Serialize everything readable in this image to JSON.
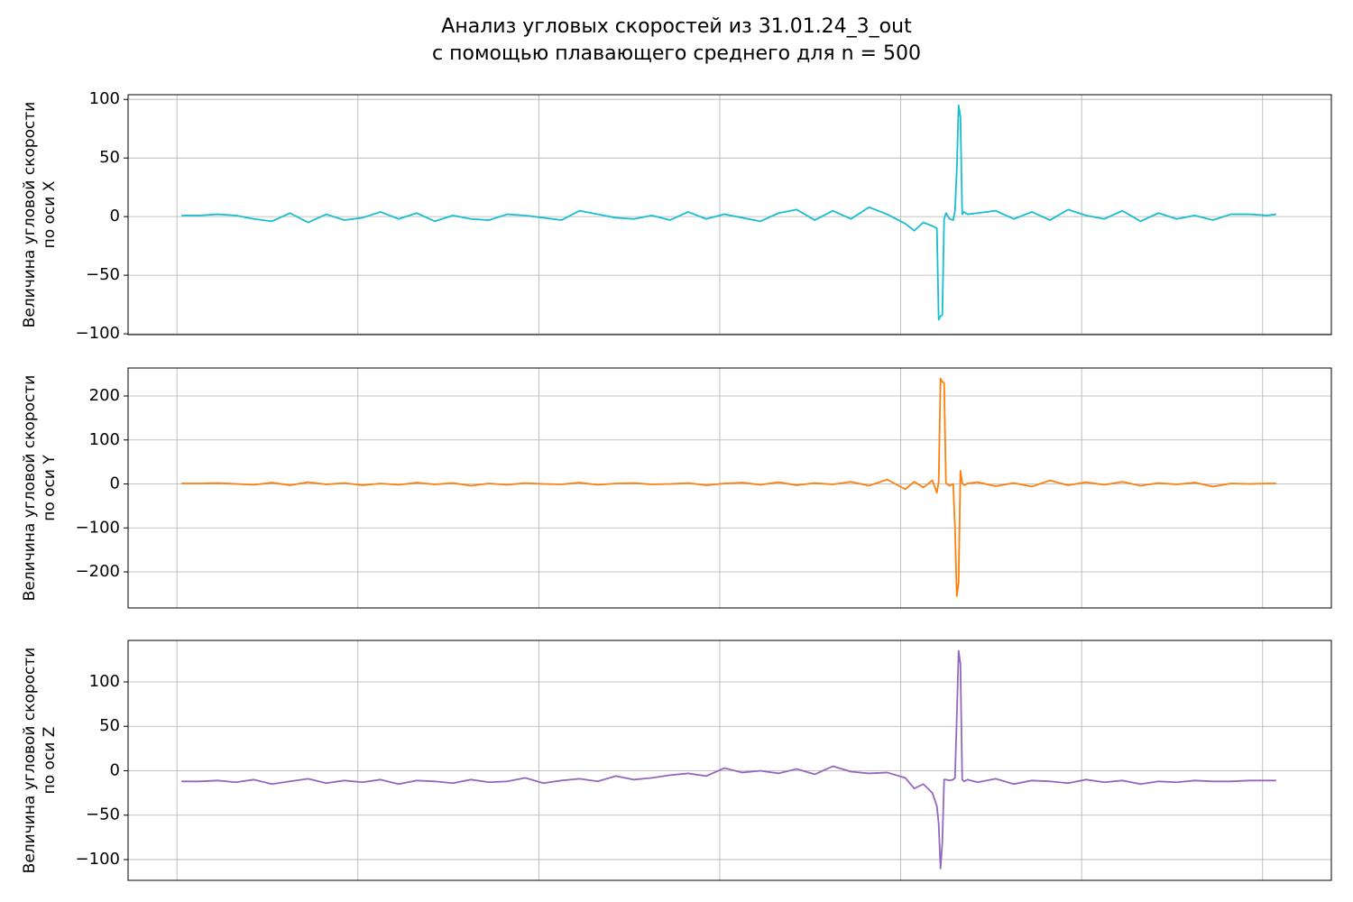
{
  "title": [
    "Анализ угловых скоростей из 31.01.24_3_out",
    "с помощью плавающего среднего для n = 500"
  ],
  "chart_data": [
    {
      "type": "line",
      "ylabel": [
        "Величина угловой скорости",
        "по оси X"
      ],
      "color": "#17becf",
      "grid": true,
      "xlim": [
        -2700,
        63800
      ],
      "xticks": [
        0,
        10000,
        20000,
        30000,
        40000,
        50000,
        60000
      ],
      "ylim": [
        -100.7,
        104
      ],
      "yticks": [
        {
          "value": -100,
          "label": "−100"
        },
        {
          "value": -50,
          "label": "−50"
        },
        0,
        50,
        100
      ],
      "x": [
        250,
        1250,
        2250,
        3250,
        4250,
        5250,
        6250,
        7250,
        8250,
        9250,
        10250,
        11250,
        12250,
        13250,
        14250,
        15250,
        16250,
        17250,
        18250,
        19250,
        20250,
        21250,
        22250,
        23250,
        24250,
        25250,
        26250,
        27250,
        28250,
        29250,
        30250,
        31250,
        32250,
        33250,
        34250,
        35250,
        36250,
        37250,
        38250,
        39250,
        40250,
        40750,
        41250,
        41750,
        42000,
        42100,
        42200,
        42300,
        42400,
        42500,
        42700,
        42900,
        43000,
        43100,
        43200,
        43300,
        43400,
        43500,
        43700,
        44250,
        45250,
        46250,
        47250,
        48250,
        49250,
        50250,
        51250,
        52250,
        53250,
        54250,
        55250,
        56250,
        57250,
        58250,
        59250,
        60250,
        60750
      ],
      "values": [
        1,
        1,
        2,
        1,
        -2,
        -4,
        3,
        -5,
        2,
        -3,
        -1,
        4,
        -2,
        3,
        -4,
        1,
        -2,
        -3,
        2,
        1,
        -1,
        -3,
        5,
        2,
        -1,
        -2,
        1,
        -3,
        4,
        -2,
        2,
        -1,
        -4,
        3,
        6,
        -3,
        5,
        -2,
        8,
        2,
        -6,
        -12,
        -5,
        -8,
        -10,
        -88,
        -85,
        -84,
        -2,
        3,
        -2,
        -3,
        5,
        40,
        95,
        85,
        2,
        4,
        2,
        3,
        5,
        -2,
        4,
        -3,
        6,
        1,
        -2,
        5,
        -4,
        3,
        -2,
        1,
        -3,
        2,
        2,
        1,
        2
      ]
    },
    {
      "type": "line",
      "ylabel": [
        "Величина угловой скорости",
        "по оси Y"
      ],
      "color": "#ff7f0e",
      "grid": true,
      "xlim": [
        -2700,
        63800
      ],
      "xticks": [
        0,
        10000,
        20000,
        30000,
        40000,
        50000,
        60000
      ],
      "ylim": [
        -282,
        263.6
      ],
      "yticks": [
        {
          "value": -200,
          "label": "−200"
        },
        {
          "value": -100,
          "label": "−100"
        },
        0,
        100,
        200
      ],
      "x": [
        250,
        1250,
        2250,
        3250,
        4250,
        5250,
        6250,
        7250,
        8250,
        9250,
        10250,
        11250,
        12250,
        13250,
        14250,
        15250,
        16250,
        17250,
        18250,
        19250,
        20250,
        21250,
        22250,
        23250,
        24250,
        25250,
        26250,
        27250,
        28250,
        29250,
        30250,
        31250,
        32250,
        33250,
        34250,
        35250,
        36250,
        37250,
        38250,
        39250,
        40250,
        40750,
        41250,
        41750,
        42000,
        42100,
        42200,
        42300,
        42400,
        42500,
        42700,
        42900,
        43000,
        43100,
        43200,
        43300,
        43400,
        43500,
        43700,
        44250,
        45250,
        46250,
        47250,
        48250,
        49250,
        50250,
        51250,
        52250,
        53250,
        54250,
        55250,
        56250,
        57250,
        58250,
        59250,
        60250,
        60750
      ],
      "values": [
        1,
        1,
        2,
        0,
        -2,
        3,
        -3,
        4,
        -1,
        2,
        -3,
        1,
        -2,
        3,
        -1,
        2,
        -4,
        1,
        -2,
        2,
        0,
        -1,
        3,
        -2,
        1,
        2,
        -1,
        0,
        2,
        -3,
        1,
        3,
        -2,
        4,
        -3,
        2,
        -1,
        5,
        -4,
        10,
        -12,
        5,
        -8,
        8,
        -20,
        5,
        240,
        232,
        230,
        2,
        -4,
        0,
        -100,
        -255,
        -225,
        30,
        2,
        -3,
        1,
        4,
        -5,
        2,
        -6,
        8,
        -3,
        4,
        -2,
        5,
        -4,
        2,
        -1,
        3,
        -6,
        1,
        0,
        1,
        1
      ]
    },
    {
      "type": "line",
      "ylabel": [
        "Величина угловой скорости",
        "по оси Z"
      ],
      "color": "#9467bd",
      "grid": true,
      "xlim": [
        -2700,
        63800
      ],
      "xticks": [
        0,
        10000,
        20000,
        30000,
        40000,
        50000,
        60000
      ],
      "ylim": [
        -123.4,
        146.7
      ],
      "yticks": [
        {
          "value": -100,
          "label": "−100"
        },
        {
          "value": -50,
          "label": "−50"
        },
        0,
        50,
        100
      ],
      "x": [
        250,
        1250,
        2250,
        3250,
        4250,
        5250,
        6250,
        7250,
        8250,
        9250,
        10250,
        11250,
        12250,
        13250,
        14250,
        15250,
        16250,
        17250,
        18250,
        19250,
        20250,
        21250,
        22250,
        23250,
        24250,
        25250,
        26250,
        27250,
        28250,
        29250,
        30250,
        31250,
        32250,
        33250,
        34250,
        35250,
        36250,
        37250,
        38250,
        39250,
        40250,
        40750,
        41250,
        41750,
        42000,
        42100,
        42200,
        42300,
        42400,
        42500,
        42700,
        42900,
        43000,
        43100,
        43200,
        43300,
        43400,
        43500,
        43700,
        44250,
        45250,
        46250,
        47250,
        48250,
        49250,
        50250,
        51250,
        52250,
        53250,
        54250,
        55250,
        56250,
        57250,
        58250,
        59250,
        60250,
        60750
      ],
      "values": [
        -12,
        -12,
        -11,
        -13,
        -10,
        -15,
        -12,
        -9,
        -14,
        -11,
        -13,
        -10,
        -15,
        -11,
        -12,
        -14,
        -10,
        -13,
        -12,
        -8,
        -14,
        -11,
        -9,
        -12,
        -6,
        -10,
        -8,
        -5,
        -3,
        -6,
        3,
        -2,
        0,
        -3,
        2,
        -4,
        5,
        -1,
        -3,
        -2,
        -8,
        -20,
        -15,
        -25,
        -40,
        -60,
        -110,
        -80,
        -10,
        -10,
        -11,
        -10,
        -8,
        60,
        135,
        120,
        -10,
        -12,
        -10,
        -13,
        -9,
        -15,
        -11,
        -12,
        -14,
        -10,
        -13,
        -11,
        -15,
        -12,
        -13,
        -11,
        -12,
        -12,
        -11,
        -11,
        -11
      ]
    }
  ]
}
